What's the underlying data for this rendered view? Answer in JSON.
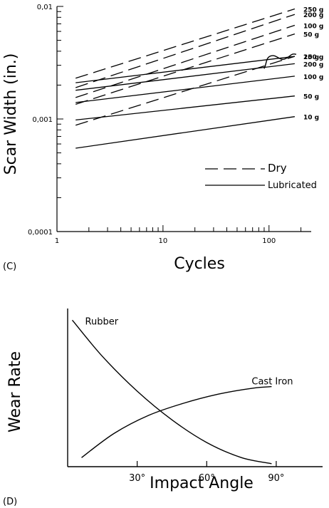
{
  "chart_data": [
    {
      "panel": "(C)",
      "type": "line",
      "xlabel": "Cycles",
      "ylabel": "Scar Width (in.)",
      "xscale": "log",
      "yscale": "log",
      "xlim": [
        1,
        250
      ],
      "ylim": [
        0.0001,
        0.01
      ],
      "x_ticklabels": [
        "1",
        "10",
        "100"
      ],
      "y_ticklabels": [
        "0,0001",
        "0,001",
        "0,01"
      ],
      "legend": {
        "position": "lower-right",
        "entries": [
          {
            "name": "Dry",
            "style": "dashed"
          },
          {
            "name": "Lubricated",
            "style": "solid"
          }
        ]
      },
      "series": [
        {
          "name": "250 g",
          "group": "Dry",
          "style": "dashed",
          "x": [
            1.5,
            175
          ],
          "y": [
            0.0023,
            0.0095
          ]
        },
        {
          "name": "200 g",
          "group": "Dry",
          "style": "dashed",
          "x": [
            1.5,
            175
          ],
          "y": [
            0.0019,
            0.0085
          ]
        },
        {
          "name": "100 g",
          "group": "Dry",
          "style": "dashed",
          "x": [
            1.5,
            175
          ],
          "y": [
            0.00155,
            0.0068
          ]
        },
        {
          "name": "50 g",
          "group": "Dry",
          "style": "dashed",
          "x": [
            1.5,
            175
          ],
          "y": [
            0.00135,
            0.0057
          ]
        },
        {
          "name": "10 g",
          "group": "Dry",
          "style": "dashed",
          "x": [
            1.5,
            175
          ],
          "y": [
            0.00088,
            0.0036
          ]
        },
        {
          "name": "250 g",
          "group": "Lubricated",
          "style": "solid",
          "x": [
            1.5,
            175
          ],
          "y": [
            0.0021,
            0.0036
          ]
        },
        {
          "name": "200 g",
          "group": "Lubricated",
          "style": "solid",
          "x": [
            1.5,
            175
          ],
          "y": [
            0.0018,
            0.0031
          ]
        },
        {
          "name": "100 g",
          "group": "Lubricated",
          "style": "solid",
          "x": [
            1.5,
            175
          ],
          "y": [
            0.0014,
            0.0024
          ]
        },
        {
          "name": "50 g",
          "group": "Lubricated",
          "style": "solid",
          "x": [
            1.5,
            175
          ],
          "y": [
            0.00098,
            0.0016
          ]
        },
        {
          "name": "10 g",
          "group": "Lubricated",
          "style": "solid",
          "x": [
            1.5,
            175
          ],
          "y": [
            0.00055,
            0.00105
          ]
        }
      ]
    },
    {
      "panel": "(D)",
      "type": "line",
      "xlabel": "Impact Angle",
      "ylabel": "Wear Rate",
      "x_unit": "degrees",
      "y_units": "relative (no scale shown)",
      "xlim": [
        0,
        110
      ],
      "ylim": [
        0,
        1
      ],
      "x_ticklabels": [
        "30°",
        "60°",
        "90°"
      ],
      "x_ticks": [
        30,
        60,
        90
      ],
      "series": [
        {
          "name": "Rubber",
          "x": [
            2,
            15,
            30,
            45,
            60,
            75,
            88
          ],
          "y": [
            0.97,
            0.73,
            0.5,
            0.31,
            0.16,
            0.06,
            0.02
          ]
        },
        {
          "name": "Cast Iron",
          "x": [
            6,
            20,
            35,
            50,
            65,
            80,
            88
          ],
          "y": [
            0.06,
            0.22,
            0.34,
            0.42,
            0.48,
            0.52,
            0.53
          ]
        }
      ]
    }
  ]
}
